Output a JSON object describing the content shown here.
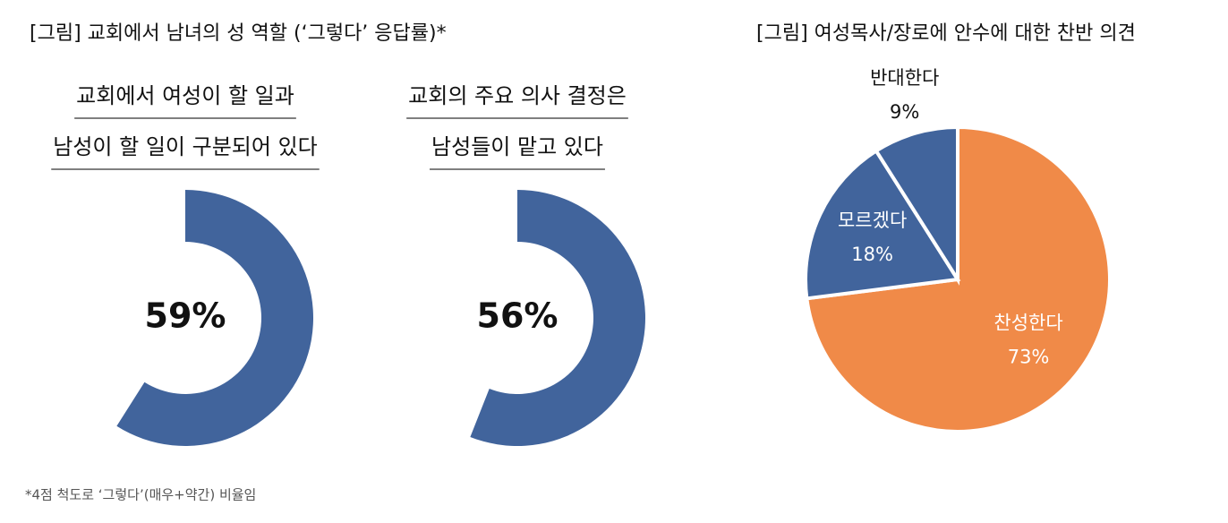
{
  "header": {
    "title": "[그림] 교회에서 남녀의 성 역할 (‘그렇다’ 응답률)*"
  },
  "footnote": "*4점 척도로 ‘그렇다’(매우+약간) 비율임",
  "chart_data": [
    {
      "type": "donut",
      "title_lines": [
        "교회에서 여성이 할 일과",
        "남성이 할 일이 구분되어 있다"
      ],
      "values": [
        59
      ],
      "value_labels": [
        "59%"
      ],
      "ylim": [
        0,
        100
      ],
      "color": "#41649c"
    },
    {
      "type": "donut",
      "title_lines": [
        "교회의 주요 의사 결정은",
        "남성들이 맡고 있다"
      ],
      "values": [
        56
      ],
      "value_labels": [
        "56%"
      ],
      "ylim": [
        0,
        100
      ],
      "color": "#41649c"
    },
    {
      "type": "pie",
      "title": "[그림] 여성목사/장로에 안수에 대한 찬반 의견",
      "categories": [
        "찬성한다",
        "모르겠다",
        "반대한다"
      ],
      "values": [
        73,
        18,
        9
      ],
      "value_labels": [
        "73%",
        "18%",
        "9%"
      ],
      "colors": [
        "#f08a48",
        "#41649c",
        "#41649c"
      ]
    }
  ]
}
